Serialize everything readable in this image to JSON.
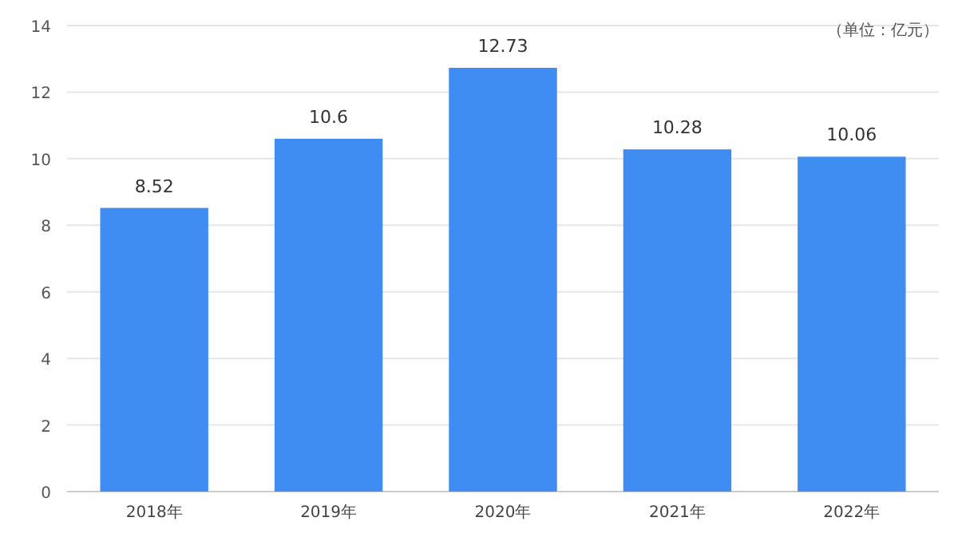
{
  "chart_data": {
    "type": "bar",
    "ylabel": "（单位：亿元）",
    "categories": [
      "2018年",
      "2019年",
      "2020年",
      "2021年",
      "2022年"
    ],
    "values": [
      8.52,
      10.6,
      12.73,
      10.28,
      10.06
    ],
    "color": "#3f8df3",
    "ylim": [
      0,
      14
    ],
    "yticks": [
      0,
      2,
      4,
      6,
      8,
      10,
      12,
      14
    ],
    "grid": "y",
    "data_labels": true
  }
}
